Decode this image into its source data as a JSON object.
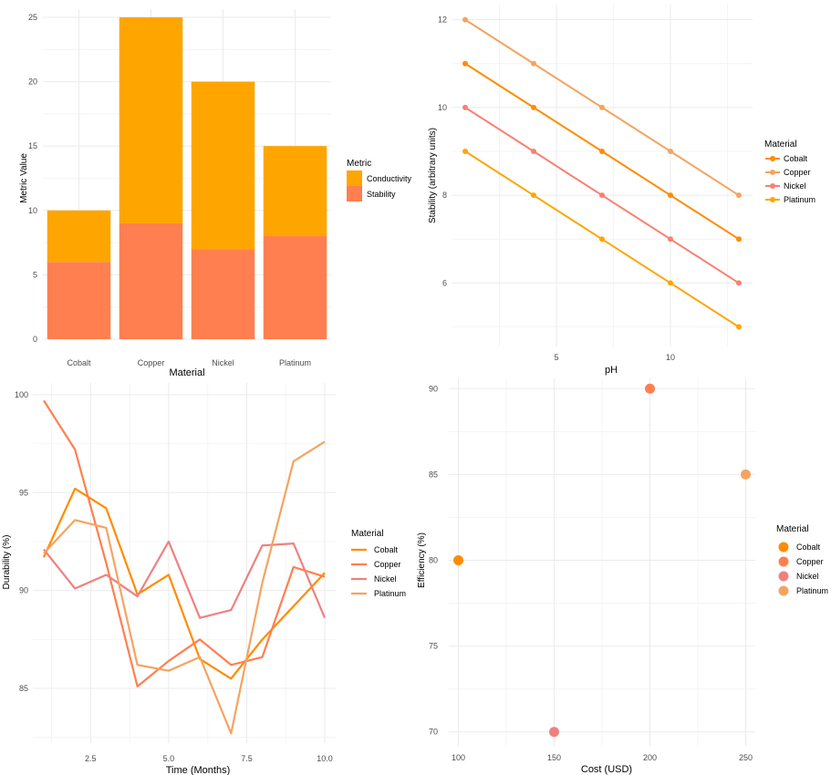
{
  "chart_data": [
    {
      "type": "bar",
      "stacked": true,
      "xlabel": "Material",
      "ylabel": "Metric Value",
      "categories": [
        "Cobalt",
        "Copper",
        "Nickel",
        "Platinum"
      ],
      "series": [
        {
          "name": "Stability",
          "values": [
            6,
            9,
            7,
            8
          ],
          "color": "#FF7F50"
        },
        {
          "name": "Conductivity",
          "values": [
            4,
            16,
            13,
            7
          ],
          "color": "#FFA500"
        }
      ],
      "ylim": [
        0,
        25
      ],
      "yticks": [
        0,
        5,
        10,
        15,
        20,
        25
      ],
      "legend": {
        "title": "Metric",
        "position": "right",
        "entries": [
          "Conductivity",
          "Stability"
        ]
      },
      "grid": true
    },
    {
      "type": "line",
      "markers": true,
      "xlabel": "pH",
      "ylabel": "Stability (arbitrary units)",
      "x": [
        1,
        4,
        7,
        10,
        13
      ],
      "series": [
        {
          "name": "Cobalt",
          "values": [
            11,
            10,
            9,
            8,
            7
          ],
          "color": "#FF8C00"
        },
        {
          "name": "Copper",
          "values": [
            12,
            11,
            10,
            9,
            8
          ],
          "color": "#F4A460"
        },
        {
          "name": "Nickel",
          "values": [
            10,
            9,
            8,
            7,
            6
          ],
          "color": "#FA8072"
        },
        {
          "name": "Platinum",
          "values": [
            9,
            8,
            7,
            6,
            5
          ],
          "color": "#FFA500"
        }
      ],
      "xlim": [
        0.4,
        13.6
      ],
      "ylim": [
        4.7,
        12.2
      ],
      "xticks": [
        5,
        10
      ],
      "yticks": [
        6,
        8,
        10,
        12
      ],
      "legend": {
        "title": "Material",
        "position": "right"
      },
      "grid": true
    },
    {
      "type": "line",
      "xlabel": "Time (Months)",
      "ylabel": "Durability (%)",
      "x": [
        1,
        2,
        3,
        4,
        5,
        6,
        7,
        8,
        9,
        10
      ],
      "series": [
        {
          "name": "Cobalt",
          "values": [
            91.7,
            95.2,
            94.2,
            89.8,
            90.8,
            86.5,
            85.5,
            87.5,
            89.2,
            90.9
          ],
          "color": "#FF8C00"
        },
        {
          "name": "Copper",
          "values": [
            99.7,
            97.2,
            91.4,
            85.1,
            86.4,
            87.5,
            86.2,
            86.6,
            91.2,
            90.7
          ],
          "color": "#FF7F50"
        },
        {
          "name": "Nickel",
          "values": [
            92.1,
            90.1,
            90.8,
            89.7,
            92.5,
            88.6,
            89.0,
            92.3,
            92.4,
            88.6
          ],
          "color": "#F08080"
        },
        {
          "name": "Platinum",
          "values": [
            91.9,
            93.6,
            93.2,
            86.2,
            85.9,
            86.6,
            82.7,
            90.4,
            96.6,
            97.6
          ],
          "color": "#F4A460"
        }
      ],
      "xlim": [
        0.65,
        10.35
      ],
      "ylim": [
        82.3,
        100.6
      ],
      "xticks": [
        "2.5",
        "5.0",
        "7.5",
        "10.0"
      ],
      "yticks": [
        85,
        90,
        95,
        100
      ],
      "legend": {
        "title": "Material",
        "position": "right"
      },
      "grid": true
    },
    {
      "type": "scatter",
      "xlabel": "Cost (USD)",
      "ylabel": "Efficiency (%)",
      "series": [
        {
          "name": "Cobalt",
          "x": 100,
          "y": 80,
          "color": "#FF8C00"
        },
        {
          "name": "Copper",
          "x": 200,
          "y": 90,
          "color": "#FF7F50"
        },
        {
          "name": "Nickel",
          "x": 150,
          "y": 70,
          "color": "#F08080"
        },
        {
          "name": "Platinum",
          "x": 250,
          "y": 85,
          "color": "#F4A460"
        }
      ],
      "xlim": [
        95,
        255
      ],
      "ylim": [
        69.4,
        90.6
      ],
      "xticks": [
        100,
        150,
        200,
        250
      ],
      "yticks": [
        70,
        75,
        80,
        85,
        90
      ],
      "legend": {
        "title": "Material",
        "position": "right"
      },
      "grid": true
    }
  ]
}
